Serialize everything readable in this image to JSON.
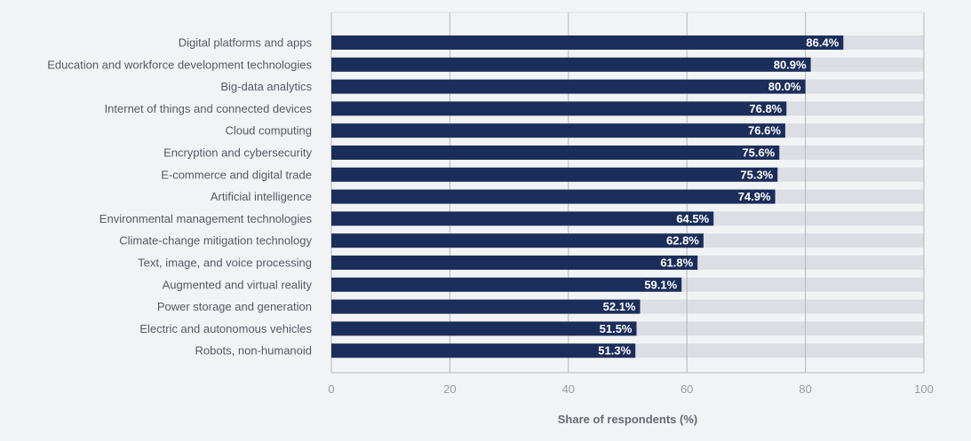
{
  "chart_data": {
    "type": "bar",
    "orientation": "horizontal",
    "categories": [
      "Digital platforms and apps",
      "Education and workforce development technologies",
      "Big-data analytics",
      "Internet of things and connected devices",
      "Cloud computing",
      "Encryption and cybersecurity",
      "E-commerce and digital trade",
      "Artificial intelligence",
      "Environmental management technologies",
      "Climate-change mitigation technology",
      "Text, image, and voice processing",
      "Augmented and virtual reality",
      "Power storage and generation",
      "Electric and autonomous vehicles",
      "Robots, non-humanoid"
    ],
    "values": [
      86.4,
      80.9,
      80.0,
      76.8,
      76.6,
      75.6,
      75.3,
      74.9,
      64.5,
      62.8,
      61.8,
      59.1,
      52.1,
      51.5,
      51.3
    ],
    "value_labels": [
      "86.4%",
      "80.9%",
      "80.0%",
      "76.8%",
      "76.6%",
      "75.6%",
      "75.3%",
      "74.9%",
      "64.5%",
      "62.8%",
      "61.8%",
      "59.1%",
      "52.1%",
      "51.5%",
      "51.3%"
    ],
    "xlabel": "Share of respondents (%)",
    "ylabel": "",
    "xlim": [
      0,
      100
    ],
    "xticks": [
      "0",
      "20",
      "40",
      "60",
      "80",
      "100"
    ],
    "grid": true,
    "colors": {
      "bar": "#1b2d5a",
      "track": "#dcdee3",
      "background": "#f2f3f5",
      "grid": "#b5b7bb"
    }
  }
}
